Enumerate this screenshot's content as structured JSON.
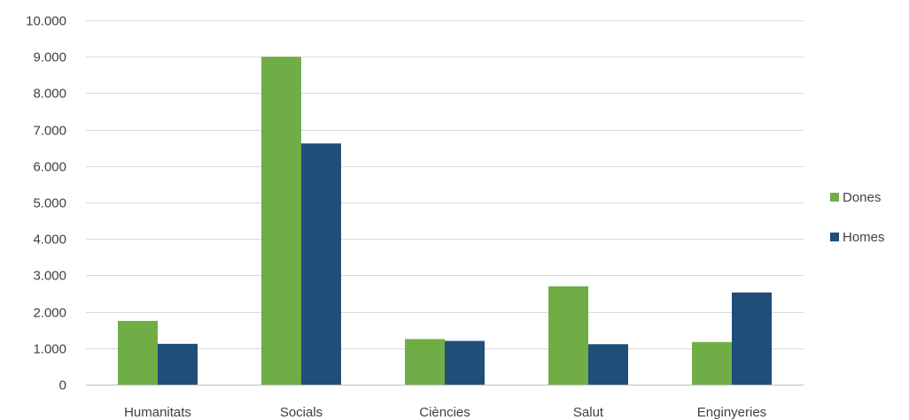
{
  "chart_data": {
    "type": "bar",
    "title": "",
    "xlabel": "",
    "ylabel": "",
    "categories": [
      "Humanitats",
      "Socials",
      "Ciències",
      "Salut",
      "Enginyeries"
    ],
    "series": [
      {
        "name": "Dones",
        "color": "#70ad47",
        "values": [
          1750,
          9000,
          1250,
          2700,
          1170
        ]
      },
      {
        "name": "Homes",
        "color": "#1f4e79",
        "values": [
          1120,
          6620,
          1200,
          1110,
          2530
        ]
      }
    ],
    "ylim": [
      0,
      10000
    ],
    "y_ticks": [
      0,
      1000,
      2000,
      3000,
      4000,
      5000,
      6000,
      7000,
      8000,
      9000,
      10000
    ],
    "y_tick_labels": [
      "0",
      "1.000",
      "2.000",
      "3.000",
      "4.000",
      "5.000",
      "6.000",
      "7.000",
      "8.000",
      "9.000",
      "10.000"
    ],
    "grid": true,
    "legend_position": "right",
    "colors": {
      "gridline": "#d9d9d9",
      "axis": "#bfbfbf",
      "text": "#404040"
    }
  }
}
